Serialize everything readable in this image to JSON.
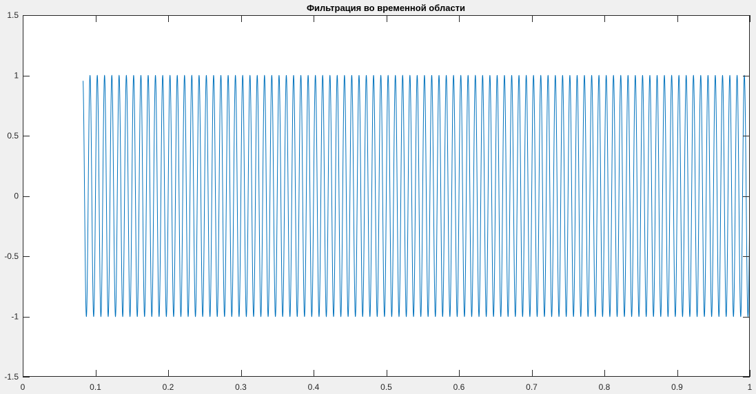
{
  "chart_data": {
    "type": "line",
    "title": "Фильтрация во временной области",
    "xlabel": "",
    "ylabel": "",
    "xlim": [
      0,
      1
    ],
    "ylim": [
      -1.5,
      1.5
    ],
    "x_ticks": [
      0,
      0.1,
      0.2,
      0.3,
      0.4,
      0.5,
      0.6,
      0.7,
      0.8,
      0.9,
      1
    ],
    "x_tick_labels": [
      "0",
      "0.1",
      "0.2",
      "0.3",
      "0.4",
      "0.5",
      "0.6",
      "0.7",
      "0.8",
      "0.9",
      "1"
    ],
    "y_ticks": [
      -1.5,
      -1,
      -0.5,
      0,
      0.5,
      1,
      1.5
    ],
    "y_tick_labels": [
      "-1.5",
      "-1",
      "-0.5",
      "0",
      "0.5",
      "1",
      "1.5"
    ],
    "grid": false,
    "series": [
      {
        "color": "#0072bd",
        "waveform": "sine",
        "amplitude": 1,
        "frequency_hz": 100,
        "t_start": 0.083,
        "t_end": 1.0
      }
    ]
  },
  "colors": {
    "figure_background": "#f0f0f0",
    "axes_background": "#ffffff",
    "axis_color": "#262626",
    "line_color": "#0072bd"
  }
}
